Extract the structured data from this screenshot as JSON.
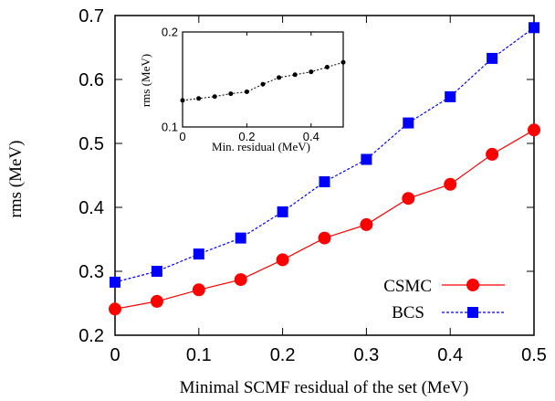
{
  "chart_data": [
    {
      "type": "line",
      "xlabel": "Minimal SCMF residual of the set (MeV)",
      "ylabel": "rms (MeV)",
      "xlim": [
        0,
        0.5
      ],
      "ylim": [
        0.2,
        0.7
      ],
      "xticks": [
        "0",
        "0.1",
        "0.2",
        "0.3",
        "0.4",
        "0.5"
      ],
      "yticks": [
        "0.2",
        "0.3",
        "0.4",
        "0.5",
        "0.6",
        "0.7"
      ],
      "legend_position": "bottom-right",
      "grid": false,
      "series": [
        {
          "name": "CSMC",
          "color": "#ff0000",
          "marker": "circle",
          "line_style": "solid",
          "x": [
            0,
            0.05,
            0.1,
            0.15,
            0.2,
            0.25,
            0.3,
            0.35,
            0.4,
            0.45,
            0.5
          ],
          "values": [
            0.241,
            0.253,
            0.271,
            0.287,
            0.318,
            0.352,
            0.373,
            0.414,
            0.436,
            0.483,
            0.521
          ]
        },
        {
          "name": "BCS",
          "color": "#0000ff",
          "marker": "square",
          "line_style": "dashed",
          "x": [
            0,
            0.05,
            0.1,
            0.15,
            0.2,
            0.25,
            0.3,
            0.35,
            0.4,
            0.45,
            0.5
          ],
          "values": [
            0.283,
            0.3,
            0.327,
            0.352,
            0.393,
            0.44,
            0.475,
            0.532,
            0.573,
            0.633,
            0.681
          ]
        }
      ]
    },
    {
      "type": "line",
      "xlabel": "Min. residual (MeV)",
      "ylabel": "rms (MeV)",
      "xlim": [
        0,
        0.5
      ],
      "ylim": [
        0.1,
        0.2
      ],
      "xticks": [
        "0",
        "0.2",
        "0.4"
      ],
      "yticks": [
        "0.1",
        "0.2"
      ],
      "grid": false,
      "series": [
        {
          "color": "#000000",
          "marker": "dot",
          "line_style": "dotted",
          "x": [
            0,
            0.05,
            0.1,
            0.15,
            0.2,
            0.25,
            0.3,
            0.35,
            0.4,
            0.45,
            0.5
          ],
          "values": [
            0.128,
            0.13,
            0.132,
            0.135,
            0.137,
            0.145,
            0.152,
            0.155,
            0.158,
            0.163,
            0.168
          ]
        }
      ]
    }
  ]
}
